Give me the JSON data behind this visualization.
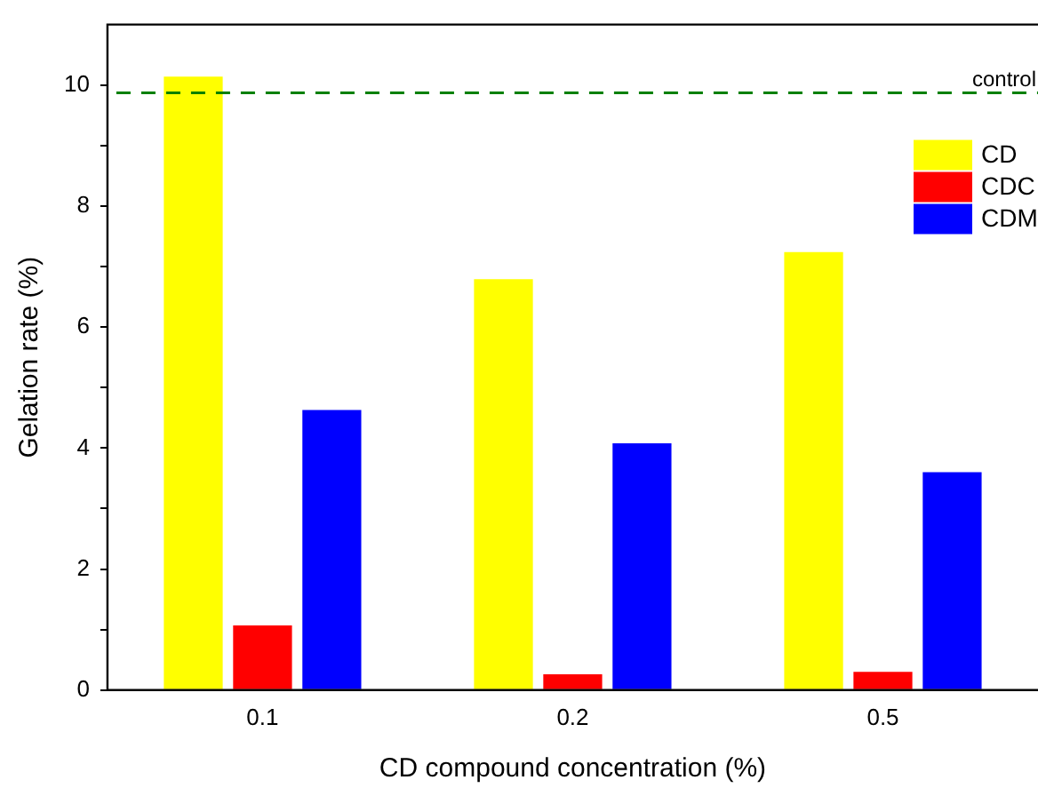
{
  "chart_data": {
    "type": "bar",
    "xlabel": "CD compound concentration (%)",
    "ylabel": "Gelation rate (%)",
    "categories": [
      "0.1",
      "0.2",
      "0.5"
    ],
    "series": [
      {
        "name": "CD",
        "color": "#ffff00",
        "values": [
          10.14,
          6.79,
          7.24
        ]
      },
      {
        "name": "CDC",
        "color": "#ff0000",
        "values": [
          1.07,
          0.26,
          0.3
        ]
      },
      {
        "name": "CDM",
        "color": "#0000ff",
        "values": [
          4.63,
          4.08,
          3.6
        ]
      }
    ],
    "ylim": [
      0,
      11
    ],
    "yticks": [
      0,
      {
        "value": 1,
        "label": null
      },
      2,
      {
        "value": 3,
        "label": null
      },
      4,
      {
        "value": 5,
        "label": null
      },
      6,
      {
        "value": 7,
        "label": null
      },
      8,
      {
        "value": 9,
        "label": null
      },
      10
    ],
    "ref_lines": [
      {
        "axis": "y",
        "value": 9.87,
        "label": "control",
        "color": "#008000",
        "line_style": "dashed"
      }
    ],
    "grid": false,
    "legend": "top right"
  }
}
